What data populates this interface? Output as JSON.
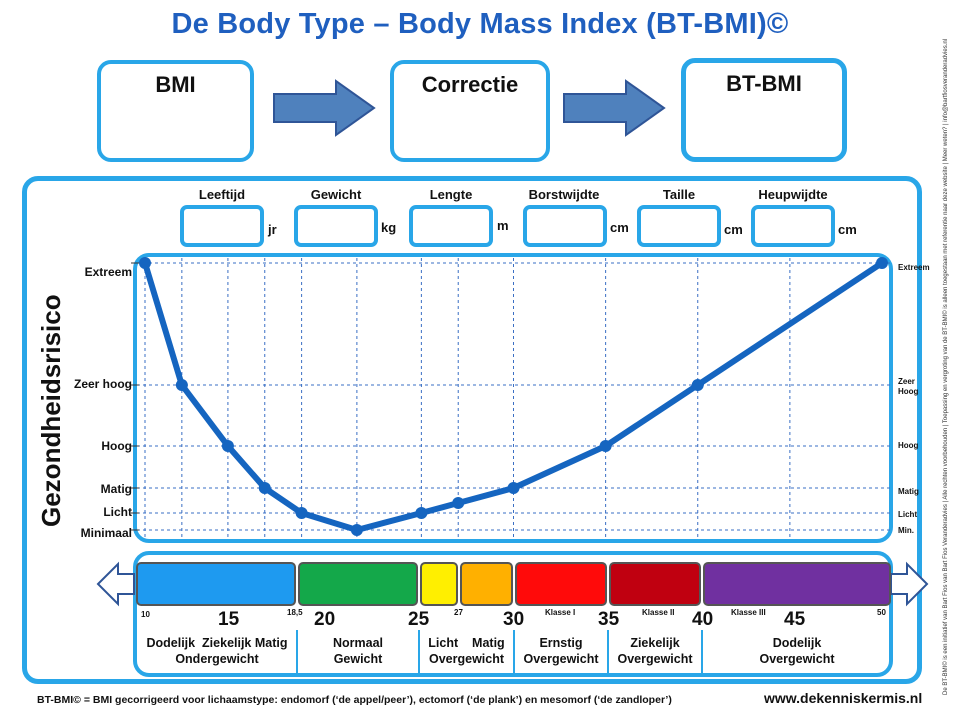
{
  "title": "De Body Type – Body Mass Index (BT-BMI)©",
  "steps": [
    {
      "label": "BMI"
    },
    {
      "label": "Correctie"
    },
    {
      "label": "BT-BMI"
    }
  ],
  "inputs": [
    {
      "label": "Leeftijd",
      "unit": "jr"
    },
    {
      "label": "Gewicht",
      "unit": "kg"
    },
    {
      "label": "Lengte",
      "unit": "m"
    },
    {
      "label": "Borstwijdte",
      "unit": "cm"
    },
    {
      "label": "Taille",
      "unit": "cm"
    },
    {
      "label": "Heupwijdte",
      "unit": "cm"
    }
  ],
  "yaxis": {
    "title": "Gezondheidsrisico",
    "levels_left": [
      "Extreem",
      "Zeer hoog",
      "Hoog",
      "Matig",
      "Licht",
      "Minimaal"
    ],
    "levels_right": [
      "Extreem",
      "Zeer Hoog",
      "Hoog",
      "Matig",
      "Licht",
      "Min."
    ]
  },
  "chart_data": {
    "type": "line",
    "xlabel": "",
    "ylabel": "Gezondheidsrisico",
    "x_range": [
      10,
      50
    ],
    "points": [
      {
        "x": 10,
        "y": "Extreem"
      },
      {
        "x": 12,
        "y": "Zeer hoog"
      },
      {
        "x": 14.5,
        "y": "Hoog"
      },
      {
        "x": 16.5,
        "y": "Matig"
      },
      {
        "x": 18.5,
        "y": "Licht"
      },
      {
        "x": 21.5,
        "y": "Minimaal"
      },
      {
        "x": 25,
        "y": "Licht"
      },
      {
        "x": 27,
        "y": "Licht/Matig"
      },
      {
        "x": 30,
        "y": "Matig"
      },
      {
        "x": 35,
        "y": "Hoog"
      },
      {
        "x": 40,
        "y": "Zeer hoog"
      },
      {
        "x": 50,
        "y": "Extreem"
      }
    ],
    "color": "#1565c0"
  },
  "scale": {
    "big_ticks": [
      "15",
      "20",
      "25",
      "30",
      "35",
      "40",
      "45"
    ],
    "small_ticks": [
      "10",
      "18,5",
      "27",
      "50"
    ],
    "class_labels": [
      "Klasse I",
      "Klasse II",
      "Klasse III"
    ],
    "bands": [
      {
        "color": "#1e9af0"
      },
      {
        "color": "#14a84a"
      },
      {
        "color": "#ffef00"
      },
      {
        "color": "#ffb000"
      },
      {
        "color": "#ff0a0a"
      },
      {
        "color": "#c00010"
      },
      {
        "color": "#7030a0"
      }
    ],
    "categories": [
      {
        "lines": [
          "Dodelijk  Ziekelijk Matig",
          "Ondergewicht"
        ]
      },
      {
        "lines": [
          "Normaal",
          "Gewicht"
        ]
      },
      {
        "lines": [
          "Licht    Matig",
          "Overgewicht"
        ]
      },
      {
        "lines": [
          "Ernstig",
          "Overgewicht"
        ]
      },
      {
        "lines": [
          "Ziekelijk",
          "Overgewicht"
        ]
      },
      {
        "lines": [
          "Dodelijk",
          "Overgewicht"
        ]
      }
    ]
  },
  "footer": {
    "note": "BT-BMI© = BMI gecorrigeerd voor lichaamstype: endomorf (‘de appel/peer’), ectomorf (‘de plank’) en mesomorf (‘de zandloper’)",
    "site": "www.dekenniskermis.nl"
  },
  "side_copyright": "De BT-BMI© is een initiatief van Bart Fios van Bart Fios Veranderadvies | Alle rechten voorbehouden | Toepassing en vergroting van de BT-BMI© is alleen toegestaan met referentie naar deze website | Meer weten? | info@bartfiosveranderadvies.nl"
}
